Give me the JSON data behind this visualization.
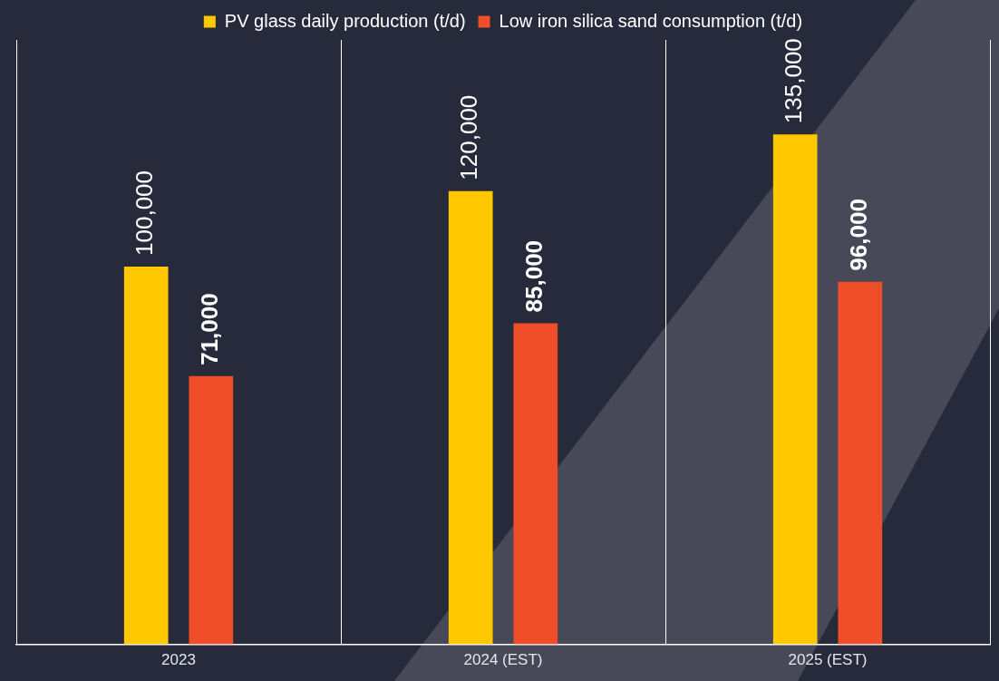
{
  "chart_data": {
    "type": "bar",
    "categories": [
      "2023",
      "2024 (EST)",
      "2025 (EST)"
    ],
    "series": [
      {
        "name": "PV glass daily production (t/d)",
        "color": "#ffc800",
        "values": [
          100000,
          120000,
          135000
        ],
        "value_labels": [
          "100,000",
          "120,000",
          "135,000"
        ]
      },
      {
        "name": "Low iron silica sand consumption (t/d)",
        "color": "#f04e28",
        "values": [
          71000,
          85000,
          96000
        ],
        "value_labels": [
          "71,000",
          "85,000",
          "96,000"
        ]
      }
    ],
    "tick_labels": "x",
    "grid": "x",
    "legend": "top",
    "marker": "square"
  }
}
